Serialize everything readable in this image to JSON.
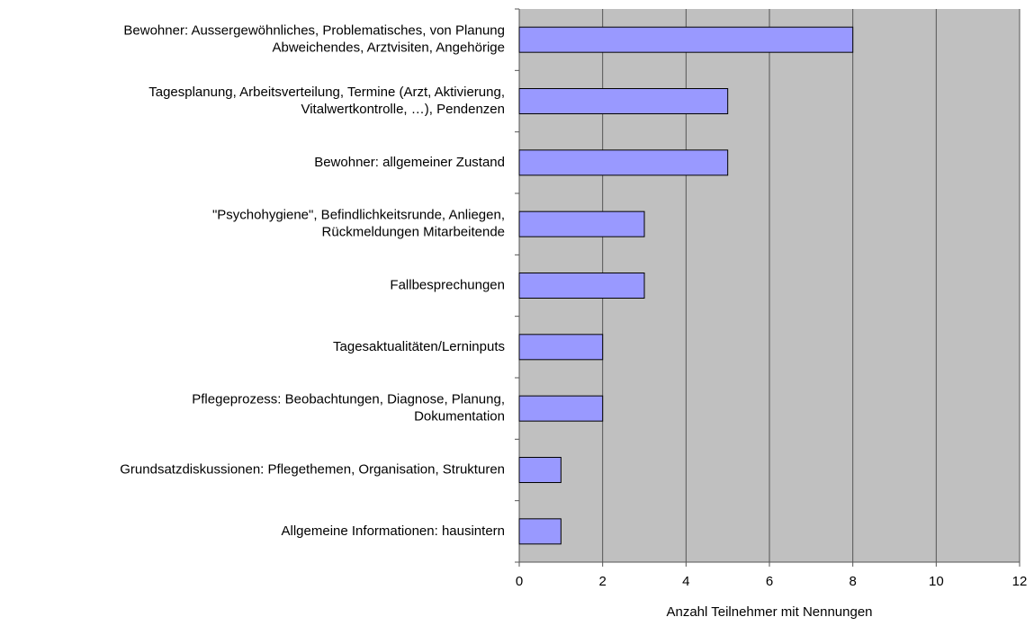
{
  "chart_data": {
    "type": "barh",
    "categories": [
      [
        "Bewohner: Aussergewöhnliches, Problematisches, von Planung",
        "Abweichendes, Arztvisiten, Angehörige"
      ],
      [
        "Tagesplanung, Arbeitsverteilung, Termine (Arzt, Aktivierung,",
        "Vitalwertkontrolle, …), Pendenzen"
      ],
      [
        "Bewohner: allgemeiner Zustand"
      ],
      [
        "\"Psychohygiene\", Befindlichkeitsrunde, Anliegen,",
        "Rückmeldungen Mitarbeitende"
      ],
      [
        "Fallbesprechungen"
      ],
      [
        "Tagesaktualitäten/Lerninputs"
      ],
      [
        "Pflegeprozess: Beobachtungen, Diagnose, Planung,",
        "Dokumentation"
      ],
      [
        "Grundsatzdiskussionen: Pflegethemen, Organisation, Strukturen"
      ],
      [
        "Allgemeine Informationen: hausintern"
      ]
    ],
    "values": [
      8,
      5,
      5,
      3,
      3,
      2,
      2,
      1,
      1
    ],
    "color": "#9999ff",
    "xlabel": "Anzahl Teilnehmer mit Nennungen",
    "xlim": [
      0,
      12
    ],
    "xticks": [
      0,
      2,
      4,
      6,
      8,
      10,
      12
    ],
    "grid": true
  }
}
